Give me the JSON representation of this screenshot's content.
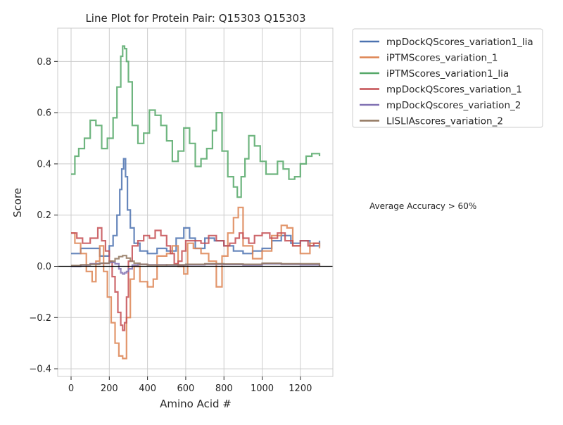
{
  "chart_data": {
    "type": "line",
    "title": "Line Plot for Protein Pair: Q15303 Q15303",
    "xlabel": "Amino Acid #",
    "ylabel": "Score",
    "xlim": [
      -70,
      1370
    ],
    "ylim": [
      -0.43,
      0.93
    ],
    "x_ticks": [
      0,
      200,
      400,
      600,
      800,
      1000,
      1200
    ],
    "x_tick_labels": [
      "0",
      "200",
      "400",
      "600",
      "800",
      "1000",
      "1200"
    ],
    "y_ticks": [
      -0.4,
      -0.2,
      0.0,
      0.2,
      0.4,
      0.6,
      0.8
    ],
    "y_tick_labels": [
      "−0.4",
      "−0.2",
      "0.0",
      "0.2",
      "0.4",
      "0.6",
      "0.8"
    ],
    "grid": true,
    "zero_line": true,
    "legend_position": "outside-top-right",
    "annotation": "Average Accuracy > 60%",
    "series": [
      {
        "name": "mpDockQScores_variation1_lia",
        "color": "#4c72b0",
        "x": [
          0,
          50,
          100,
          150,
          200,
          220,
          240,
          255,
          265,
          275,
          285,
          295,
          310,
          330,
          360,
          400,
          450,
          500,
          550,
          590,
          620,
          650,
          700,
          750,
          800,
          850,
          900,
          950,
          1000,
          1050,
          1100,
          1150,
          1200,
          1250,
          1300
        ],
        "y": [
          0.05,
          0.07,
          0.07,
          0.04,
          0.08,
          0.12,
          0.2,
          0.3,
          0.38,
          0.42,
          0.35,
          0.22,
          0.15,
          0.09,
          0.06,
          0.05,
          0.07,
          0.06,
          0.11,
          0.15,
          0.11,
          0.07,
          0.11,
          0.1,
          0.08,
          0.06,
          0.05,
          0.06,
          0.07,
          0.1,
          0.12,
          0.09,
          0.1,
          0.08,
          0.1
        ]
      },
      {
        "name": "iPTMScores_variation_1",
        "color": "#dd8452",
        "x": [
          0,
          20,
          50,
          80,
          110,
          130,
          150,
          170,
          190,
          210,
          230,
          250,
          270,
          290,
          310,
          330,
          360,
          400,
          430,
          450,
          500,
          530,
          560,
          590,
          610,
          640,
          680,
          720,
          760,
          790,
          820,
          850,
          875,
          900,
          950,
          1000,
          1050,
          1100,
          1130,
          1160,
          1200,
          1250,
          1300
        ],
        "y": [
          0.13,
          0.09,
          0.05,
          -0.02,
          -0.06,
          0.02,
          0.08,
          -0.02,
          -0.12,
          -0.22,
          -0.3,
          -0.35,
          -0.36,
          -0.2,
          -0.05,
          0.0,
          -0.06,
          -0.08,
          -0.05,
          0.04,
          0.05,
          0.08,
          0.0,
          -0.03,
          0.09,
          0.07,
          0.05,
          0.02,
          -0.08,
          0.04,
          0.13,
          0.19,
          0.23,
          0.08,
          0.03,
          0.06,
          0.12,
          0.16,
          0.15,
          0.08,
          0.05,
          0.09,
          0.07
        ]
      },
      {
        "name": "iPTMScores_variation1_lia",
        "color": "#55a868",
        "x": [
          0,
          20,
          40,
          70,
          100,
          130,
          160,
          190,
          220,
          240,
          260,
          270,
          280,
          290,
          300,
          320,
          350,
          380,
          410,
          440,
          470,
          500,
          530,
          560,
          590,
          620,
          650,
          680,
          710,
          740,
          760,
          790,
          820,
          850,
          870,
          890,
          910,
          930,
          960,
          990,
          1020,
          1050,
          1080,
          1110,
          1140,
          1170,
          1200,
          1230,
          1260,
          1300
        ],
        "y": [
          0.36,
          0.43,
          0.46,
          0.5,
          0.57,
          0.55,
          0.46,
          0.5,
          0.58,
          0.7,
          0.82,
          0.86,
          0.85,
          0.8,
          0.72,
          0.55,
          0.48,
          0.52,
          0.61,
          0.59,
          0.55,
          0.49,
          0.41,
          0.45,
          0.54,
          0.48,
          0.39,
          0.42,
          0.46,
          0.53,
          0.6,
          0.45,
          0.35,
          0.31,
          0.27,
          0.35,
          0.42,
          0.51,
          0.47,
          0.41,
          0.36,
          0.36,
          0.41,
          0.38,
          0.34,
          0.35,
          0.4,
          0.43,
          0.44,
          0.43
        ]
      },
      {
        "name": "mpDockQScores_variation_1",
        "color": "#c44e52",
        "x": [
          0,
          30,
          60,
          100,
          140,
          160,
          180,
          200,
          215,
          230,
          245,
          260,
          270,
          280,
          290,
          300,
          320,
          350,
          380,
          410,
          440,
          470,
          500,
          520,
          540,
          560,
          580,
          600,
          640,
          680,
          720,
          760,
          800,
          830,
          860,
          880,
          900,
          930,
          960,
          1000,
          1040,
          1080,
          1120,
          1160,
          1200,
          1240,
          1270,
          1300
        ],
        "y": [
          0.13,
          0.11,
          0.09,
          0.11,
          0.15,
          0.1,
          0.06,
          0.02,
          -0.04,
          -0.1,
          -0.18,
          -0.23,
          -0.25,
          -0.22,
          -0.12,
          0.02,
          0.08,
          0.1,
          0.12,
          0.11,
          0.14,
          0.12,
          0.08,
          0.05,
          0.01,
          0.02,
          0.06,
          0.1,
          0.1,
          0.09,
          0.12,
          0.1,
          0.08,
          0.09,
          0.11,
          0.13,
          0.11,
          0.09,
          0.12,
          0.13,
          0.11,
          0.13,
          0.1,
          0.08,
          0.1,
          0.08,
          0.09,
          0.09
        ]
      },
      {
        "name": "mpDockQscores_variation_2",
        "color": "#8172b3",
        "x": [
          0,
          50,
          100,
          150,
          200,
          230,
          250,
          260,
          270,
          280,
          290,
          300,
          320,
          350,
          400,
          500,
          600,
          700,
          800,
          900,
          1000,
          1100,
          1200,
          1300
        ],
        "y": [
          0.0,
          0.005,
          0.01,
          0.012,
          0.015,
          0.01,
          -0.01,
          -0.025,
          -0.03,
          -0.025,
          -0.02,
          -0.01,
          0.005,
          0.008,
          0.006,
          0.005,
          0.006,
          0.008,
          0.007,
          0.005,
          0.01,
          0.008,
          0.006,
          0.0
        ]
      },
      {
        "name": "LISLIAscores_variation_2",
        "color": "#937860",
        "x": [
          0,
          50,
          100,
          150,
          200,
          230,
          250,
          270,
          290,
          310,
          330,
          360,
          400,
          500,
          600,
          700,
          800,
          900,
          1000,
          1100,
          1200,
          1300
        ],
        "y": [
          0.003,
          0.006,
          0.008,
          0.012,
          0.02,
          0.03,
          0.038,
          0.042,
          0.032,
          0.02,
          0.012,
          0.008,
          0.005,
          0.006,
          0.008,
          0.01,
          0.009,
          0.008,
          0.012,
          0.01,
          0.01,
          0.002
        ]
      }
    ]
  }
}
